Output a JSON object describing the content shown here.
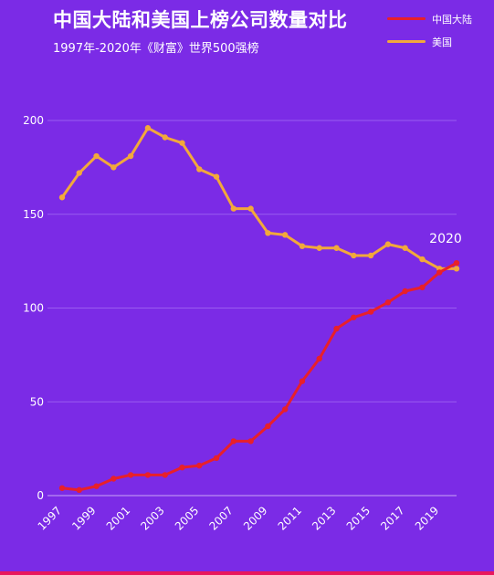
{
  "chart_data": {
    "type": "line",
    "title": "中国大陆和美国上榜公司数量对比",
    "subtitle": "1997年-2020年《财富》世界500强榜",
    "x": [
      1997,
      1998,
      1999,
      2000,
      2001,
      2002,
      2003,
      2004,
      2005,
      2006,
      2007,
      2008,
      2009,
      2010,
      2011,
      2012,
      2013,
      2014,
      2015,
      2016,
      2017,
      2018,
      2019,
      2020
    ],
    "x_tick_labels": [
      "1997",
      "1999",
      "2001",
      "2003",
      "2005",
      "2007",
      "2009",
      "2011",
      "2013",
      "2015",
      "2017",
      "2019"
    ],
    "y_ticks": [
      0,
      50,
      100,
      150,
      200
    ],
    "ylim": [
      0,
      210
    ],
    "grid": true,
    "legend_position": "top-right",
    "series": [
      {
        "name": "中国大陆",
        "color": "#e8202a",
        "values": [
          4,
          3,
          5,
          9,
          11,
          11,
          11,
          15,
          16,
          20,
          29,
          29,
          37,
          46,
          61,
          73,
          89,
          95,
          98,
          103,
          109,
          111,
          119,
          124
        ]
      },
      {
        "name": "美国",
        "color": "#f2a83b",
        "values": [
          159,
          172,
          181,
          175,
          181,
          196,
          191,
          188,
          174,
          170,
          153,
          153,
          140,
          139,
          133,
          132,
          132,
          128,
          128,
          134,
          132,
          126,
          121,
          121
        ]
      }
    ],
    "annotations": [
      {
        "text": "2020",
        "x": 2020,
        "y": 125
      }
    ]
  }
}
